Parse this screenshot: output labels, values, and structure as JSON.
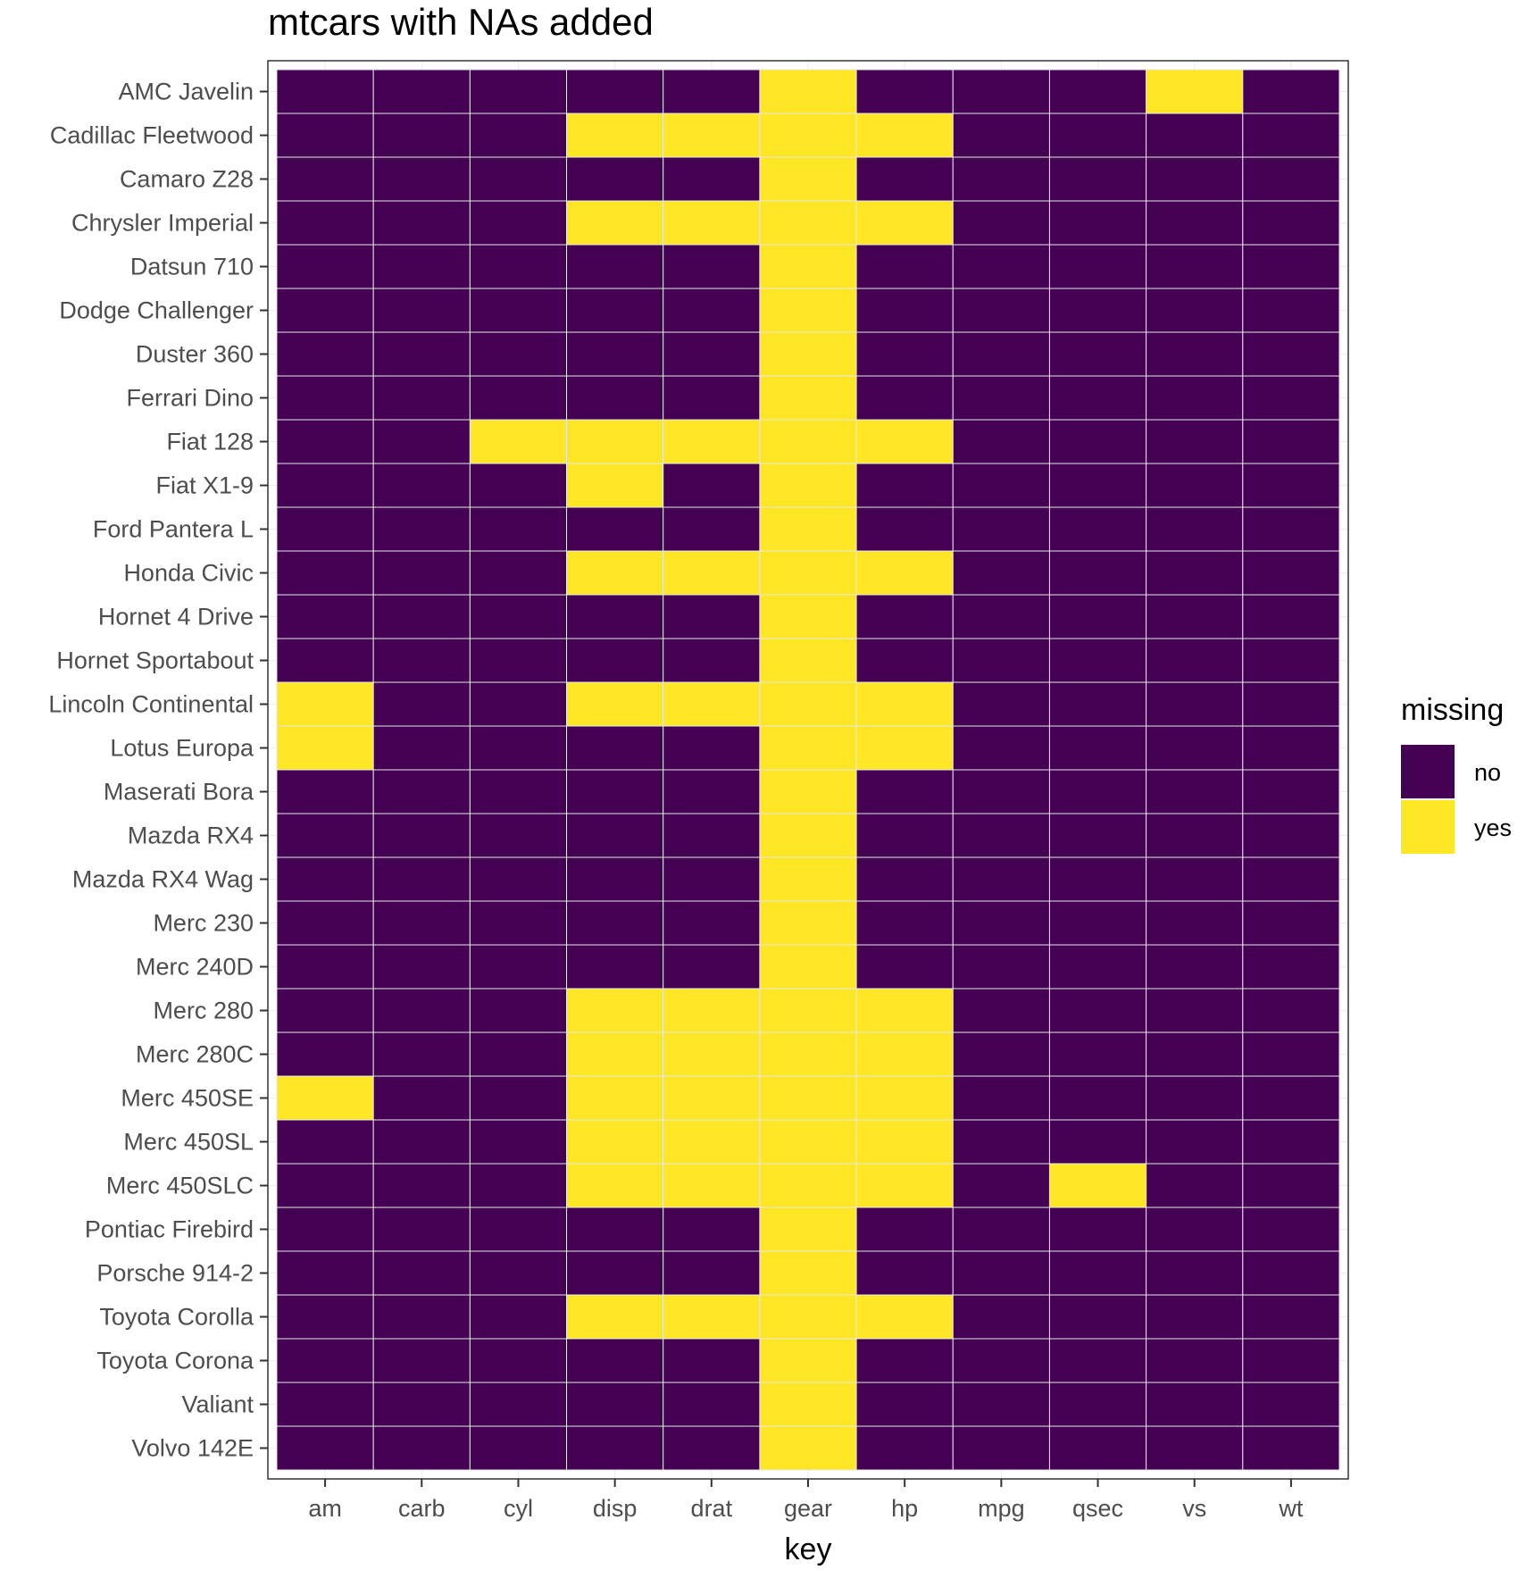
{
  "chart_data": {
    "type": "heatmap",
    "title": "mtcars with NAs added",
    "xlabel": "key",
    "ylabel": "",
    "x": [
      "am",
      "carb",
      "cyl",
      "disp",
      "drat",
      "gear",
      "hp",
      "mpg",
      "qsec",
      "vs",
      "wt"
    ],
    "y": [
      "AMC Javelin",
      "Cadillac Fleetwood",
      "Camaro Z28",
      "Chrysler Imperial",
      "Datsun 710",
      "Dodge Challenger",
      "Duster 360",
      "Ferrari Dino",
      "Fiat 128",
      "Fiat X1-9",
      "Ford Pantera L",
      "Honda Civic",
      "Hornet 4 Drive",
      "Hornet Sportabout",
      "Lincoln Continental",
      "Lotus Europa",
      "Maserati Bora",
      "Mazda RX4",
      "Mazda RX4 Wag",
      "Merc 230",
      "Merc 240D",
      "Merc 280",
      "Merc 280C",
      "Merc 450SE",
      "Merc 450SL",
      "Merc 450SLC",
      "Pontiac Firebird",
      "Porsche 914-2",
      "Toyota Corolla",
      "Toyota Corona",
      "Valiant",
      "Volvo 142E"
    ],
    "values": [
      [
        0,
        0,
        0,
        0,
        0,
        1,
        0,
        0,
        0,
        1,
        0
      ],
      [
        0,
        0,
        0,
        1,
        1,
        1,
        1,
        0,
        0,
        0,
        0
      ],
      [
        0,
        0,
        0,
        0,
        0,
        1,
        0,
        0,
        0,
        0,
        0
      ],
      [
        0,
        0,
        0,
        1,
        1,
        1,
        1,
        0,
        0,
        0,
        0
      ],
      [
        0,
        0,
        0,
        0,
        0,
        1,
        0,
        0,
        0,
        0,
        0
      ],
      [
        0,
        0,
        0,
        0,
        0,
        1,
        0,
        0,
        0,
        0,
        0
      ],
      [
        0,
        0,
        0,
        0,
        0,
        1,
        0,
        0,
        0,
        0,
        0
      ],
      [
        0,
        0,
        0,
        0,
        0,
        1,
        0,
        0,
        0,
        0,
        0
      ],
      [
        0,
        0,
        1,
        1,
        1,
        1,
        1,
        0,
        0,
        0,
        0
      ],
      [
        0,
        0,
        0,
        1,
        0,
        1,
        0,
        0,
        0,
        0,
        0
      ],
      [
        0,
        0,
        0,
        0,
        0,
        1,
        0,
        0,
        0,
        0,
        0
      ],
      [
        0,
        0,
        0,
        1,
        1,
        1,
        1,
        0,
        0,
        0,
        0
      ],
      [
        0,
        0,
        0,
        0,
        0,
        1,
        0,
        0,
        0,
        0,
        0
      ],
      [
        0,
        0,
        0,
        0,
        0,
        1,
        0,
        0,
        0,
        0,
        0
      ],
      [
        1,
        0,
        0,
        1,
        1,
        1,
        1,
        0,
        0,
        0,
        0
      ],
      [
        1,
        0,
        0,
        0,
        0,
        1,
        1,
        0,
        0,
        0,
        0
      ],
      [
        0,
        0,
        0,
        0,
        0,
        1,
        0,
        0,
        0,
        0,
        0
      ],
      [
        0,
        0,
        0,
        0,
        0,
        1,
        0,
        0,
        0,
        0,
        0
      ],
      [
        0,
        0,
        0,
        0,
        0,
        1,
        0,
        0,
        0,
        0,
        0
      ],
      [
        0,
        0,
        0,
        0,
        0,
        1,
        0,
        0,
        0,
        0,
        0
      ],
      [
        0,
        0,
        0,
        0,
        0,
        1,
        0,
        0,
        0,
        0,
        0
      ],
      [
        0,
        0,
        0,
        1,
        1,
        1,
        1,
        0,
        0,
        0,
        0
      ],
      [
        0,
        0,
        0,
        1,
        1,
        1,
        1,
        0,
        0,
        0,
        0
      ],
      [
        1,
        0,
        0,
        1,
        1,
        1,
        1,
        0,
        0,
        0,
        0
      ],
      [
        0,
        0,
        0,
        1,
        1,
        1,
        1,
        0,
        0,
        0,
        0
      ],
      [
        0,
        0,
        0,
        1,
        1,
        1,
        1,
        0,
        1,
        0,
        0
      ],
      [
        0,
        0,
        0,
        0,
        0,
        1,
        0,
        0,
        0,
        0,
        0
      ],
      [
        0,
        0,
        0,
        0,
        0,
        1,
        0,
        0,
        0,
        0,
        0
      ],
      [
        0,
        0,
        0,
        1,
        1,
        1,
        1,
        0,
        0,
        0,
        0
      ],
      [
        0,
        0,
        0,
        0,
        0,
        1,
        0,
        0,
        0,
        0,
        0
      ],
      [
        0,
        0,
        0,
        0,
        0,
        1,
        0,
        0,
        0,
        0,
        0
      ],
      [
        0,
        0,
        0,
        0,
        0,
        1,
        0,
        0,
        0,
        0,
        0
      ]
    ],
    "legend": {
      "title": "missing",
      "position": "right",
      "entries": [
        {
          "label": "no",
          "color": "#440154"
        },
        {
          "label": "yes",
          "color": "#FDE725"
        }
      ]
    },
    "colors": {
      "no": "#440154",
      "yes": "#FDE725",
      "cell_border": "#e6e6e6",
      "panel_border": "#333333",
      "grid": "#ebebeb"
    },
    "grid": true
  }
}
